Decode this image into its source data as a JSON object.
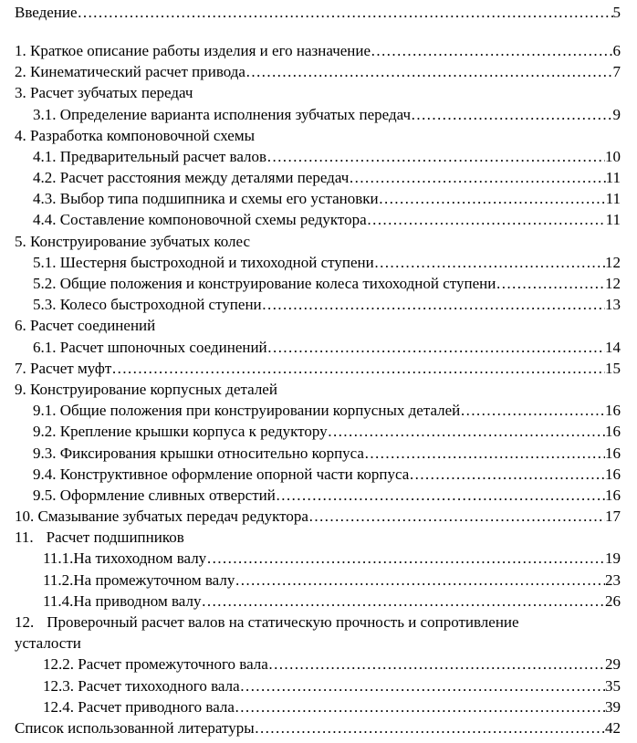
{
  "toc": {
    "intro": {
      "title": "Введение",
      "page": "5"
    },
    "entries": [
      {
        "title": "1. Краткое описание работы изделия и его назначение",
        "page": "6",
        "level": 0
      },
      {
        "title": "2. Кинематический расчет привода ",
        "page": "7",
        "level": 0
      },
      {
        "title": "3. Расчет зубчатых передач",
        "page": "",
        "level": 0
      },
      {
        "title": "3.1. Определение варианта исполнения зубчатых передач",
        "page": "9",
        "level": 1
      },
      {
        "title": "4. Разработка компоновочной схемы",
        "page": "",
        "level": 0
      },
      {
        "title": "4.1. Предварительный расчет валов",
        "page": "10",
        "level": 1
      },
      {
        "title": "4.2. Расчет расстояния между деталями передач",
        "page": "11",
        "level": 1
      },
      {
        "title": "4.3. Выбор типа подшипника и схемы его установки",
        "page": "11",
        "level": 1
      },
      {
        "title": "4.4. Составление компоновочной схемы редуктора",
        "page": "11",
        "level": 1
      },
      {
        "title": "5. Конструирование зубчатых колес",
        "page": "",
        "level": 0
      },
      {
        "title": "5.1. Шестерня быстроходной и тихоходной ступени",
        "page": "12",
        "level": 1
      },
      {
        "title": "5.2. Общие положения и конструирование колеса тихоходной ступени",
        "page": "12",
        "level": 1
      },
      {
        "title": "5.3. Колесо быстроходной ступени",
        "page": "13",
        "level": 1
      },
      {
        "title": "6. Расчет соединений",
        "page": "",
        "level": 0
      },
      {
        "title": "6.1. Расчет шпоночных соединений",
        "page": "14",
        "level": 1
      },
      {
        "title": "7. Расчет муфт",
        "page": "15",
        "level": 0
      },
      {
        "title": "9. Конструирование корпусных деталей",
        "page": "",
        "level": 0
      },
      {
        "title": "9.1. Общие положения при конструировании корпусных деталей",
        "page": "16",
        "level": 1
      },
      {
        "title": "9.2. Крепление крышки корпуса к редуктору",
        "page": "16",
        "level": 1
      },
      {
        "title": "9.3. Фиксирования крышки относительно корпуса",
        "page": "16",
        "level": 1
      },
      {
        "title": "9.4. Конструктивное оформление опорной части корпуса",
        "page": "16",
        "level": 1
      },
      {
        "title": "9.5. Оформление сливных отверстий",
        "page": "16",
        "level": 1
      },
      {
        "title": "10. Смазывание зубчатых передач редуктора",
        "page": "17",
        "level": 0
      },
      {
        "number": "11.",
        "title": "Расчет подшипников",
        "page": "",
        "level": 0
      },
      {
        "title": "11.1.На тихоходном валу",
        "page": "19",
        "level": 2
      },
      {
        "title": "11.2.На промежуточном валу",
        "page": "23",
        "level": 2
      },
      {
        "title": "11.4.На приводном валу",
        "page": "26",
        "level": 2
      },
      {
        "number": "12.",
        "title": "Проверочный расчет валов на  статическую прочность и сопротивление",
        "page": "",
        "level": 0
      },
      {
        "title": "усталости",
        "page": "",
        "level": 0
      },
      {
        "title": "12.2. Расчет промежуточного вала ",
        "page": "29",
        "level": 2
      },
      {
        "title": "12.3. Расчет тихоходного вала ",
        "page": "35",
        "level": 2
      },
      {
        "title": "12.4. Расчет приводного вала ",
        "page": "39",
        "level": 2
      }
    ],
    "bibliography": {
      "title": "Список использованной литературы",
      "page": "42"
    }
  }
}
